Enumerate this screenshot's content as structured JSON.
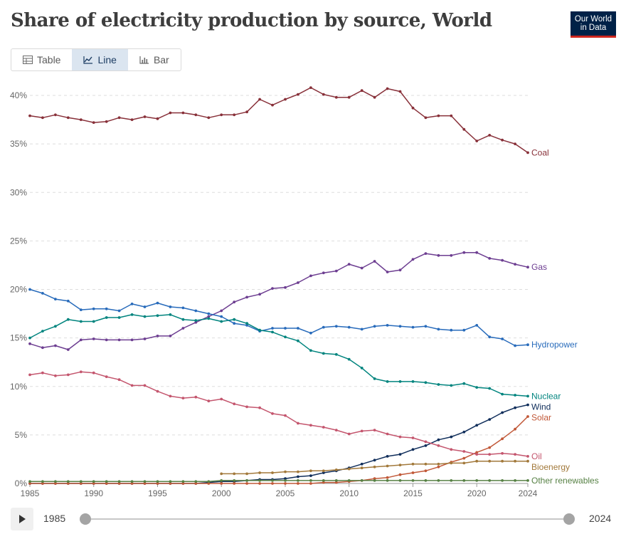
{
  "title": "Share of electricity production by source, World",
  "logo": {
    "line1": "Our World",
    "line2": "in Data"
  },
  "tabs": [
    {
      "label": "Table",
      "icon": "table-icon",
      "active": false
    },
    {
      "label": "Line",
      "icon": "line-chart-icon",
      "active": true
    },
    {
      "label": "Bar",
      "icon": "bar-chart-icon",
      "active": false
    }
  ],
  "timeline": {
    "start": "1985",
    "end": "2024"
  },
  "chart_data": {
    "type": "line",
    "title": "Share of electricity production by source, World",
    "xlabel": "",
    "ylabel": "",
    "xlim": [
      1985,
      2024
    ],
    "ylim": [
      0,
      40
    ],
    "y_ticks": [
      0,
      5,
      10,
      15,
      20,
      25,
      30,
      35,
      40
    ],
    "y_tick_labels": [
      "0%",
      "5%",
      "10%",
      "15%",
      "20%",
      "25%",
      "30%",
      "35%",
      "40%"
    ],
    "x_ticks": [
      1985,
      1990,
      1995,
      2000,
      2005,
      2010,
      2015,
      2020,
      2024
    ],
    "x_tick_labels": [
      "1985",
      "1990",
      "1995",
      "2000",
      "2005",
      "2010",
      "2015",
      "2020",
      "2024"
    ],
    "grid": "horizontal dashed",
    "legend": "inline labels at line ends",
    "series": [
      {
        "name": "Coal",
        "color": "#883039",
        "start": 1985,
        "values": [
          37.9,
          37.7,
          38.0,
          37.7,
          37.5,
          37.2,
          37.3,
          37.7,
          37.5,
          37.8,
          37.6,
          38.2,
          38.2,
          38.0,
          37.7,
          38.0,
          38.0,
          38.3,
          39.6,
          39.0,
          39.6,
          40.1,
          40.8,
          40.1,
          39.8,
          39.8,
          40.5,
          39.8,
          40.7,
          40.4,
          38.7,
          37.7,
          37.9,
          37.9,
          36.5,
          35.3,
          35.9,
          35.4,
          35.0,
          34.1
        ]
      },
      {
        "name": "Gas",
        "color": "#6d3e91",
        "start": 1985,
        "values": [
          14.4,
          14.0,
          14.2,
          13.8,
          14.8,
          14.9,
          14.8,
          14.8,
          14.8,
          14.9,
          15.2,
          15.2,
          16.0,
          16.6,
          17.2,
          17.8,
          18.7,
          19.2,
          19.5,
          20.1,
          20.2,
          20.7,
          21.4,
          21.7,
          21.9,
          22.6,
          22.2,
          22.9,
          21.8,
          22.0,
          23.1,
          23.7,
          23.5,
          23.5,
          23.8,
          23.8,
          23.2,
          23.0,
          22.6,
          22.3
        ]
      },
      {
        "name": "Hydropower",
        "color": "#286bbb",
        "start": 1985,
        "values": [
          20.0,
          19.6,
          19.0,
          18.8,
          17.9,
          18.0,
          18.0,
          17.8,
          18.5,
          18.2,
          18.6,
          18.2,
          18.1,
          17.8,
          17.5,
          17.2,
          16.5,
          16.3,
          15.7,
          16.0,
          16.0,
          16.0,
          15.5,
          16.1,
          16.2,
          16.1,
          15.9,
          16.2,
          16.3,
          16.2,
          16.1,
          16.2,
          15.9,
          15.8,
          15.8,
          16.3,
          15.1,
          14.9,
          14.2,
          14.3
        ]
      },
      {
        "name": "Nuclear",
        "color": "#00847e",
        "start": 1985,
        "values": [
          15.0,
          15.7,
          16.2,
          16.9,
          16.7,
          16.7,
          17.1,
          17.1,
          17.4,
          17.2,
          17.3,
          17.4,
          16.9,
          16.8,
          17.0,
          16.7,
          16.9,
          16.5,
          15.8,
          15.6,
          15.1,
          14.7,
          13.7,
          13.4,
          13.3,
          12.8,
          11.9,
          10.8,
          10.5,
          10.5,
          10.5,
          10.4,
          10.2,
          10.1,
          10.3,
          9.9,
          9.8,
          9.2,
          9.1,
          9.0
        ]
      },
      {
        "name": "Wind",
        "color": "#102e5b",
        "start": 1985,
        "values": [
          0,
          0,
          0,
          0,
          0,
          0,
          0,
          0,
          0,
          0,
          0,
          0,
          0,
          0,
          0.1,
          0.2,
          0.2,
          0.3,
          0.4,
          0.4,
          0.5,
          0.7,
          0.8,
          1.1,
          1.3,
          1.6,
          2.0,
          2.4,
          2.8,
          3.0,
          3.5,
          3.9,
          4.5,
          4.8,
          5.3,
          6.0,
          6.6,
          7.3,
          7.8,
          8.1
        ]
      },
      {
        "name": "Solar",
        "color": "#c15838",
        "start": 1985,
        "values": [
          0,
          0,
          0,
          0,
          0,
          0,
          0,
          0,
          0,
          0,
          0,
          0,
          0,
          0,
          0,
          0,
          0,
          0,
          0,
          0,
          0,
          0,
          0,
          0.1,
          0.1,
          0.2,
          0.3,
          0.5,
          0.6,
          0.9,
          1.1,
          1.3,
          1.7,
          2.2,
          2.6,
          3.2,
          3.7,
          4.6,
          5.6,
          6.9
        ]
      },
      {
        "name": "Oil",
        "color": "#c4566e",
        "start": 1985,
        "values": [
          11.2,
          11.4,
          11.1,
          11.2,
          11.5,
          11.4,
          11.0,
          10.7,
          10.1,
          10.1,
          9.5,
          9.0,
          8.8,
          8.9,
          8.5,
          8.7,
          8.2,
          7.9,
          7.8,
          7.2,
          7.0,
          6.2,
          6.0,
          5.8,
          5.5,
          5.1,
          5.4,
          5.5,
          5.1,
          4.8,
          4.7,
          4.3,
          3.9,
          3.5,
          3.3,
          3.0,
          3.0,
          3.1,
          3.0,
          2.8
        ]
      },
      {
        "name": "Bioenergy",
        "color": "#a2793b",
        "start": 2000,
        "values": [
          1.0,
          1.0,
          1.0,
          1.1,
          1.1,
          1.2,
          1.2,
          1.3,
          1.3,
          1.4,
          1.5,
          1.6,
          1.7,
          1.8,
          1.9,
          2.0,
          2.0,
          2.0,
          2.1,
          2.1,
          2.3,
          2.3,
          2.3,
          2.3,
          2.3
        ]
      },
      {
        "name": "Other renewables",
        "color": "#578145",
        "start": 1985,
        "values": [
          0.2,
          0.2,
          0.2,
          0.2,
          0.2,
          0.2,
          0.2,
          0.2,
          0.2,
          0.2,
          0.2,
          0.2,
          0.2,
          0.2,
          0.2,
          0.3,
          0.3,
          0.3,
          0.3,
          0.3,
          0.3,
          0.3,
          0.3,
          0.3,
          0.3,
          0.3,
          0.3,
          0.3,
          0.3,
          0.3,
          0.3,
          0.3,
          0.3,
          0.3,
          0.3,
          0.3,
          0.3,
          0.3,
          0.3,
          0.3
        ]
      }
    ]
  }
}
